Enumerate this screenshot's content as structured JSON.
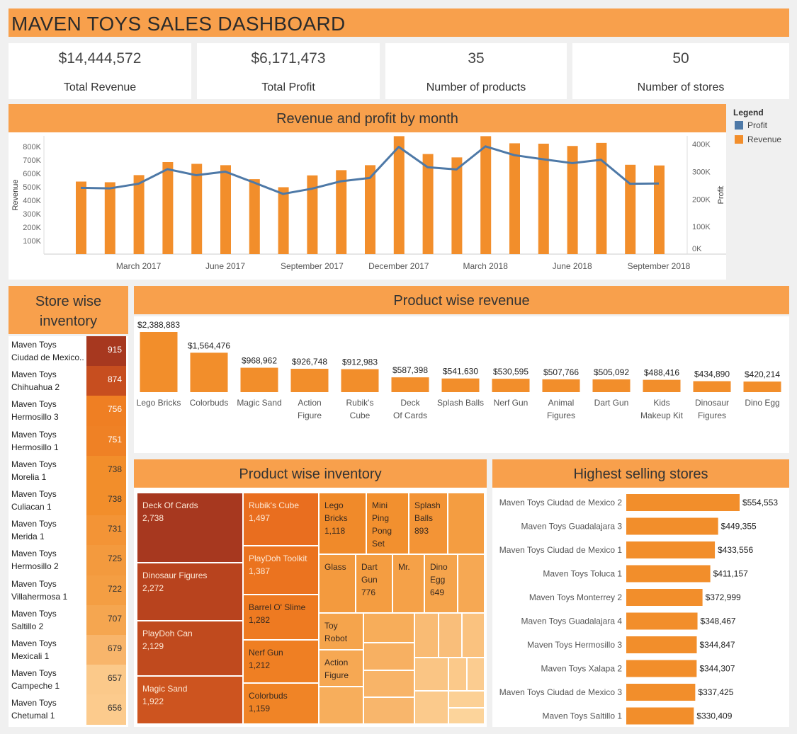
{
  "title": "MAVEN TOYS SALES DASHBOARD",
  "kpis": [
    {
      "value": "$14,444,572",
      "label": "Total Revenue"
    },
    {
      "value": "$6,171,473",
      "label": "Total Profit"
    },
    {
      "value": "35",
      "label": "Number of products"
    },
    {
      "value": "50",
      "label": "Number of stores"
    }
  ],
  "colors": {
    "accent": "#f8a04c",
    "revenue": "#f28e2b",
    "profit": "#4e79a7",
    "store_ramp": [
      "#a7381f",
      "#c74e1f",
      "#e96e1f",
      "#ef7f23",
      "#f28e2b",
      "#f49e43",
      "#f7b061",
      "#fac784",
      "#fcd7a0"
    ]
  },
  "headers": {
    "monthly": "Revenue and profit by month",
    "store_inventory": "Store wise inventory",
    "product_revenue": "Product wise revenue",
    "product_inventory": "Product wise inventory",
    "top_stores": "Highest selling stores"
  },
  "legend": {
    "title": "Legend",
    "items": [
      {
        "name": "Profit",
        "color": "#4e79a7"
      },
      {
        "name": "Revenue",
        "color": "#f28e2b"
      }
    ]
  },
  "chart_data": [
    {
      "type": "bar",
      "title": "Revenue and profit by month",
      "ylabel": "Revenue",
      "y2label": "Profit",
      "categories": [
        "Jan 2017",
        "Feb 2017",
        "Mar 2017",
        "Apr 2017",
        "May 2017",
        "Jun 2017",
        "Jul 2017",
        "Aug 2017",
        "Sep 2017",
        "Oct 2017",
        "Nov 2017",
        "Dec 2017",
        "Jan 2018",
        "Feb 2018",
        "Mar 2018",
        "Apr 2018",
        "May 2018",
        "Jun 2018",
        "Jul 2018",
        "Aug 2018",
        "Sep 2018"
      ],
      "x_tick_labels": [
        "March 2017",
        "June 2017",
        "September 2017",
        "December 2017",
        "March 2018",
        "June 2018",
        "September 2018"
      ],
      "y_ticks": [
        "100K",
        "200K",
        "300K",
        "400K",
        "500K",
        "600K",
        "700K",
        "800K"
      ],
      "y2_ticks": [
        "0K",
        "100K",
        "200K",
        "300K",
        "400K"
      ],
      "ylim": [
        0,
        880000
      ],
      "y2lim": [
        0,
        430000
      ],
      "series": [
        {
          "name": "Revenue",
          "kind": "bar",
          "values": [
            540000,
            535000,
            588000,
            685000,
            672000,
            662000,
            558000,
            498000,
            586000,
            625000,
            662000,
            878000,
            745000,
            720000,
            878000,
            825000,
            822000,
            805000,
            828000,
            665000,
            660000
          ]
        },
        {
          "name": "Profit",
          "kind": "line",
          "values": [
            241000,
            239000,
            256000,
            309000,
            287000,
            300000,
            260000,
            219000,
            238000,
            265000,
            277000,
            390000,
            316000,
            308000,
            392000,
            360000,
            345000,
            331000,
            343000,
            256000,
            257000
          ]
        }
      ],
      "grid": false,
      "legend_position": "right"
    },
    {
      "type": "bar",
      "title": "Product wise revenue",
      "categories": [
        "Lego Bricks",
        "Colorbuds",
        "Magic Sand",
        "Action Figure",
        "Rubik's Cube",
        "Deck Of Cards",
        "Splash Balls",
        "Nerf Gun",
        "Animal Figures",
        "Dart Gun",
        "Kids Makeup Kit",
        "Dinosaur Figures",
        "Dino Egg"
      ],
      "values": [
        2388883,
        1564476,
        968962,
        926748,
        912983,
        587398,
        541630,
        530595,
        507766,
        505092,
        488416,
        434890,
        420214
      ],
      "value_labels": [
        "$2,388,883",
        "$1,564,476",
        "$968,962",
        "$926,748",
        "$912,983",
        "$587,398",
        "$541,630",
        "$530,595",
        "$507,766",
        "$505,092",
        "$488,416",
        "$434,890",
        "$420,214"
      ]
    },
    {
      "type": "bar",
      "orientation": "horizontal",
      "title": "Highest selling stores",
      "categories": [
        "Maven Toys Ciudad de Mexico 2",
        "Maven Toys Guadalajara 3",
        "Maven Toys Ciudad de Mexico 1",
        "Maven Toys Toluca 1",
        "Maven Toys Monterrey 2",
        "Maven Toys Guadalajara 4",
        "Maven Toys Hermosillo 3",
        "Maven Toys Xalapa 2",
        "Maven Toys Ciudad de Mexico 3",
        "Maven Toys Saltillo 1"
      ],
      "values": [
        554553,
        449355,
        433556,
        411157,
        372999,
        348467,
        344847,
        344307,
        337425,
        330409
      ],
      "value_labels": [
        "$554,553",
        "$449,355",
        "$433,556",
        "$411,157",
        "$372,999",
        "$348,467",
        "$344,847",
        "$344,307",
        "$337,425",
        "$330,409"
      ]
    },
    {
      "type": "heatmap",
      "title": "Store wise inventory",
      "rows": [
        {
          "line1": "Maven Toys",
          "line2": "Ciudad de Mexico..",
          "value": 915,
          "color": "#a7381f"
        },
        {
          "line1": "Maven Toys",
          "line2": "Chihuahua 2",
          "value": 874,
          "color": "#c74e1f"
        },
        {
          "line1": "Maven Toys",
          "line2": "Hermosillo 3",
          "value": 756,
          "color": "#ef7f23"
        },
        {
          "line1": "Maven Toys",
          "line2": "Hermosillo 1",
          "value": 751,
          "color": "#ef8125"
        },
        {
          "line1": "Maven Toys",
          "line2": "Morelia 1",
          "value": 738,
          "color": "#f28e2b"
        },
        {
          "line1": "Maven Toys",
          "line2": "Culiacan 1",
          "value": 738,
          "color": "#f28e2b"
        },
        {
          "line1": "Maven Toys",
          "line2": "Merida 1",
          "value": 731,
          "color": "#f39436"
        },
        {
          "line1": "Maven Toys",
          "line2": "Hermosillo 2",
          "value": 725,
          "color": "#f39a3e"
        },
        {
          "line1": "Maven Toys",
          "line2": "Villahermosa 1",
          "value": 722,
          "color": "#f49e43"
        },
        {
          "line1": "Maven Toys",
          "line2": "Saltillo 2",
          "value": 707,
          "color": "#f5a650"
        },
        {
          "line1": "Maven Toys",
          "line2": "Mexicali 1",
          "value": 679,
          "color": "#f8b56b"
        },
        {
          "line1": "Maven Toys",
          "line2": "Campeche 1",
          "value": 657,
          "color": "#fbc98a"
        },
        {
          "line1": "Maven Toys",
          "line2": "Chetumal 1",
          "value": 656,
          "color": "#fccb8d"
        }
      ]
    },
    {
      "type": "treemap",
      "title": "Product wise inventory",
      "items": [
        {
          "name": "Deck Of Cards",
          "value": "2,738"
        },
        {
          "name": "Dinosaur Figures",
          "value": "2,272"
        },
        {
          "name": "PlayDoh Can",
          "value": "2,129"
        },
        {
          "name": "Magic Sand",
          "value": "1,922"
        },
        {
          "name": "Rubik's Cube",
          "value": "1,497"
        },
        {
          "name": "PlayDoh Toolkit",
          "value": "1,387"
        },
        {
          "name": "Barrel O' Slime",
          "value": "1,282"
        },
        {
          "name": "Nerf Gun",
          "value": "1,212"
        },
        {
          "name": "Colorbuds",
          "value": "1,159"
        },
        {
          "name": "Lego Bricks",
          "value": "1,118"
        },
        {
          "name": "Mini Ping Pong Set",
          "value": ""
        },
        {
          "name": "Splash Balls",
          "value": "893"
        },
        {
          "name": "Glass",
          "value": ""
        },
        {
          "name": "Dart Gun",
          "value": "776"
        },
        {
          "name": "Mr.",
          "value": ""
        },
        {
          "name": "Dino Egg",
          "value": "649"
        },
        {
          "name": "Toy Robot",
          "value": ""
        },
        {
          "name": "Action Figure",
          "value": ""
        }
      ]
    }
  ]
}
